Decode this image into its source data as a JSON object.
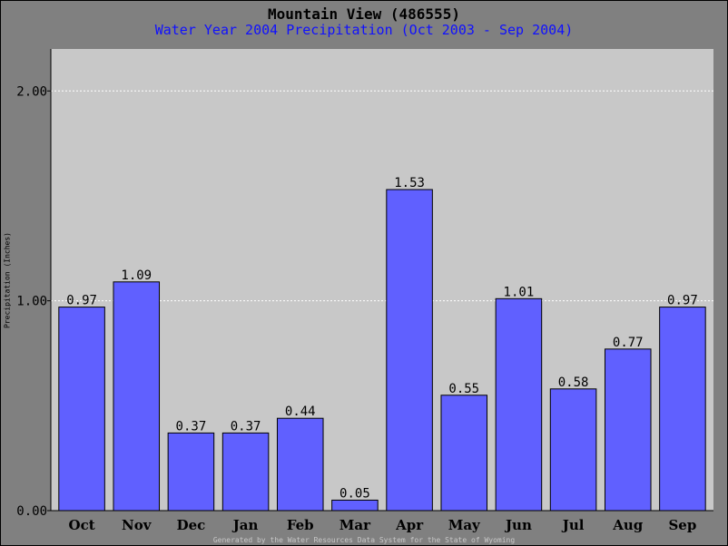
{
  "chart_data": {
    "type": "bar",
    "title": "Mountain View (486555)",
    "subtitle": "Water Year 2004 Precipitation (Oct 2003 - Sep 2004)",
    "ylabel": "Precipitation (Inches)",
    "xlabel": "",
    "ylim": [
      0,
      2.2
    ],
    "yticks": [
      0,
      1,
      2
    ],
    "ytick_labels": [
      "0.00",
      "1.00",
      "2.00"
    ],
    "grid": true,
    "categories": [
      "Oct",
      "Nov",
      "Dec",
      "Jan",
      "Feb",
      "Mar",
      "Apr",
      "May",
      "Jun",
      "Jul",
      "Aug",
      "Sep"
    ],
    "values": [
      0.97,
      1.09,
      0.37,
      0.37,
      0.44,
      0.05,
      1.53,
      0.55,
      1.01,
      0.58,
      0.77,
      0.97
    ],
    "value_labels": [
      "0.97",
      "1.09",
      "0.37",
      "0.37",
      "0.44",
      "0.05",
      "1.53",
      "0.55",
      "1.01",
      "0.58",
      "0.77",
      "0.97"
    ],
    "colors": {
      "bar": "#6060ff",
      "plot_bg": "#c8c8c8",
      "page_bg": "#808080",
      "subtitle": "#1010ff",
      "grid": "#ffffff"
    }
  },
  "footer": "Generated by the Water Resources Data System for the State of Wyoming"
}
